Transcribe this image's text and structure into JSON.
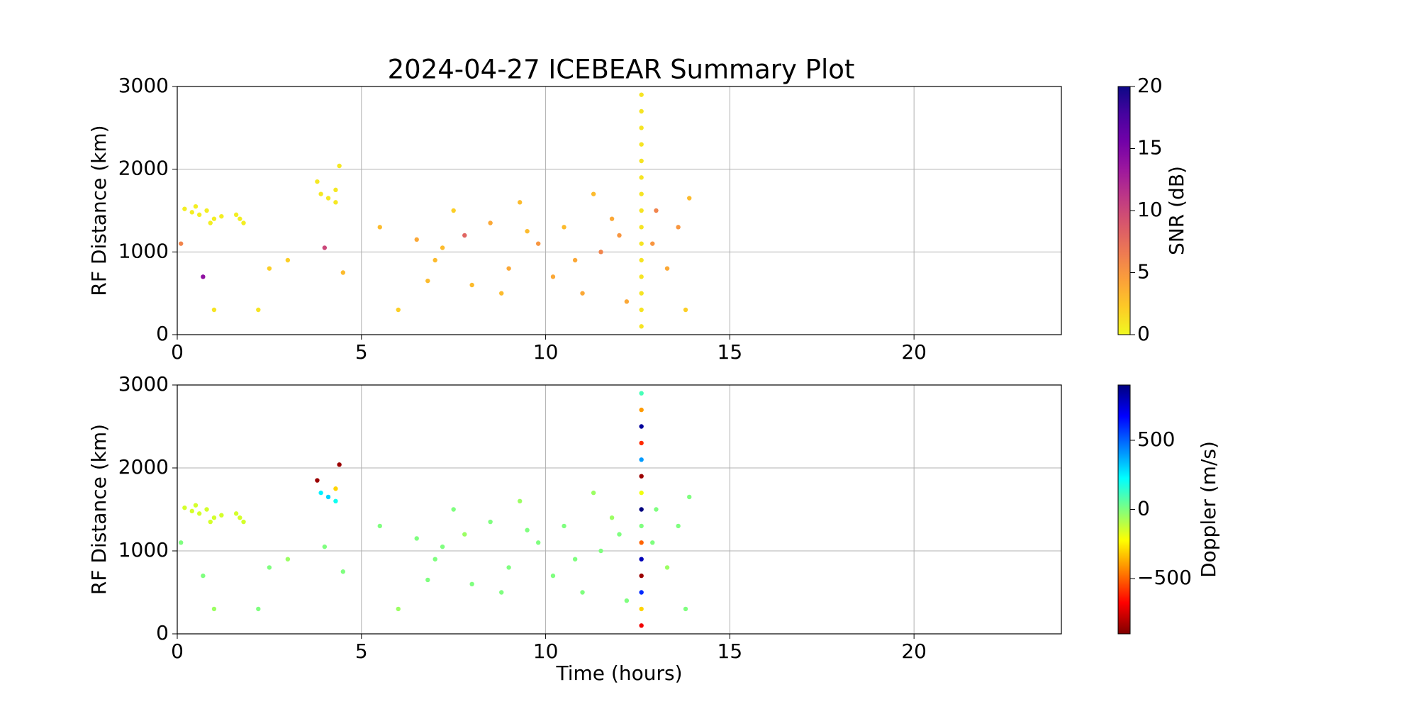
{
  "chart_data": [
    {
      "type": "scatter",
      "title": "2024-04-27 ICEBEAR Summary Plot",
      "ylabel": "RF Distance (km)",
      "xlim": [
        0,
        24
      ],
      "xticks": [
        0,
        5,
        10,
        15,
        20
      ],
      "ylim": [
        0,
        3000
      ],
      "yticks": [
        0,
        1000,
        2000,
        3000
      ],
      "grid": true,
      "colorbar": {
        "label": "SNR (dB)",
        "lim": [
          0,
          20
        ],
        "ticks": [
          0,
          5,
          10,
          15,
          20
        ],
        "colormap": [
          "#f0f921",
          "#fdca26",
          "#fb9f3a",
          "#ed7953",
          "#d8576b",
          "#bd3786",
          "#9c179e",
          "#7201a8",
          "#46039f",
          "#0d0887"
        ]
      },
      "x": [
        0.2,
        0.4,
        0.6,
        0.8,
        1.0,
        1.2,
        0.9,
        0.5,
        1.7,
        1.8,
        1.6,
        3.9,
        4.1,
        4.3,
        4.3,
        4.4,
        3.8,
        0.1,
        0.7,
        1.0,
        2.2,
        2.5,
        3.0,
        4.0,
        4.5,
        5.5,
        6.0,
        6.5,
        7.0,
        7.5,
        7.8,
        8.0,
        8.5,
        9.0,
        9.3,
        9.8,
        10.2,
        10.5,
        11.0,
        11.3,
        11.5,
        12.0,
        12.2,
        13.0,
        13.3,
        13.6,
        13.9,
        13.8,
        12.9,
        11.8,
        10.8,
        9.5,
        8.8,
        7.2,
        6.8,
        12.6,
        12.6,
        12.6,
        12.6,
        12.6,
        12.6,
        12.6,
        12.6,
        12.6,
        12.6,
        12.6,
        12.6,
        12.6,
        12.6,
        12.6
      ],
      "y": [
        1520,
        1480,
        1450,
        1500,
        1400,
        1430,
        1350,
        1550,
        1400,
        1350,
        1450,
        1700,
        1650,
        1750,
        1600,
        2040,
        1850,
        1100,
        700,
        300,
        300,
        800,
        900,
        1050,
        750,
        1300,
        300,
        1150,
        900,
        1500,
        1200,
        600,
        1350,
        800,
        1600,
        1100,
        700,
        1300,
        500,
        1700,
        1000,
        1200,
        400,
        1500,
        800,
        1300,
        1650,
        300,
        1100,
        1400,
        900,
        1250,
        500,
        1050,
        650,
        100,
        300,
        500,
        700,
        900,
        1100,
        1300,
        1500,
        1700,
        1900,
        2100,
        2300,
        2500,
        2700,
        2900
      ],
      "c": [
        0.5,
        0.5,
        0.5,
        0.5,
        0.5,
        0.5,
        0.5,
        0.5,
        0.5,
        0.5,
        0.5,
        0.8,
        0.8,
        0.8,
        0.8,
        0.8,
        0.8,
        6,
        14,
        1,
        1,
        2,
        2,
        10,
        3,
        3,
        2,
        4,
        3,
        2,
        8,
        3,
        4,
        4,
        3,
        5,
        4,
        3,
        4,
        3,
        6,
        5,
        4,
        6,
        4,
        5,
        3,
        2,
        5,
        4,
        4,
        3,
        3,
        3,
        3,
        1,
        1,
        1,
        1,
        1,
        1,
        1,
        1,
        1,
        1,
        1,
        1,
        1,
        1,
        1
      ]
    },
    {
      "type": "scatter",
      "ylabel": "RF Distance (km)",
      "xlabel": "Time (hours)",
      "xlim": [
        0,
        24
      ],
      "xticks": [
        0,
        5,
        10,
        15,
        20
      ],
      "ylim": [
        0,
        3000
      ],
      "yticks": [
        0,
        1000,
        2000,
        3000
      ],
      "grid": true,
      "colorbar": {
        "label": "Doppler (m/s)",
        "lim": [
          -900,
          900
        ],
        "ticks": [
          {
            "value": -500,
            "label": "−500"
          },
          0,
          500
        ],
        "colormap": [
          "#7f0000",
          "#ff0000",
          "#ff7f00",
          "#ffff00",
          "#7fff7f",
          "#00ffff",
          "#007fff",
          "#0000ff",
          "#00007f"
        ]
      },
      "x": [
        0.2,
        0.4,
        0.6,
        0.8,
        1.0,
        1.2,
        0.9,
        0.5,
        1.7,
        1.8,
        1.6,
        3.9,
        4.1,
        4.3,
        4.3,
        4.4,
        3.8,
        0.1,
        0.7,
        1.0,
        2.2,
        2.5,
        3.0,
        4.0,
        4.5,
        5.5,
        6.0,
        6.5,
        7.0,
        7.5,
        7.8,
        8.0,
        8.5,
        9.0,
        9.3,
        9.8,
        10.2,
        10.5,
        11.0,
        11.3,
        11.5,
        12.0,
        12.2,
        13.0,
        13.3,
        13.6,
        13.9,
        13.8,
        12.9,
        11.8,
        10.8,
        9.5,
        8.8,
        7.2,
        6.8,
        12.6,
        12.6,
        12.6,
        12.6,
        12.6,
        12.6,
        12.6,
        12.6,
        12.6,
        12.6,
        12.6,
        12.6,
        12.6,
        12.6,
        12.6
      ],
      "y": [
        1520,
        1480,
        1450,
        1500,
        1400,
        1430,
        1350,
        1550,
        1400,
        1350,
        1450,
        1700,
        1650,
        1750,
        1600,
        2040,
        1850,
        1100,
        700,
        300,
        300,
        800,
        900,
        1050,
        750,
        1300,
        300,
        1150,
        900,
        1500,
        1200,
        600,
        1350,
        800,
        1600,
        1100,
        700,
        1300,
        500,
        1700,
        1000,
        1200,
        400,
        1500,
        800,
        1300,
        1650,
        300,
        1100,
        1400,
        900,
        1250,
        500,
        1050,
        650,
        100,
        300,
        500,
        700,
        900,
        1100,
        1300,
        1500,
        1700,
        1900,
        2100,
        2300,
        2500,
        2700,
        2900
      ],
      "c": [
        -150,
        -150,
        -150,
        -150,
        -150,
        -150,
        -150,
        -150,
        -150,
        -150,
        -150,
        250,
        300,
        -300,
        200,
        -850,
        -850,
        0,
        0,
        -50,
        0,
        0,
        -50,
        0,
        0,
        0,
        -50,
        0,
        0,
        0,
        -50,
        0,
        0,
        0,
        -50,
        0,
        0,
        0,
        0,
        -50,
        0,
        0,
        0,
        0,
        -50,
        0,
        0,
        0,
        0,
        -50,
        0,
        0,
        0,
        0,
        0,
        -700,
        -300,
        600,
        -850,
        800,
        -500,
        0,
        900,
        -200,
        -850,
        400,
        -600,
        850,
        -400,
        100
      ]
    }
  ]
}
